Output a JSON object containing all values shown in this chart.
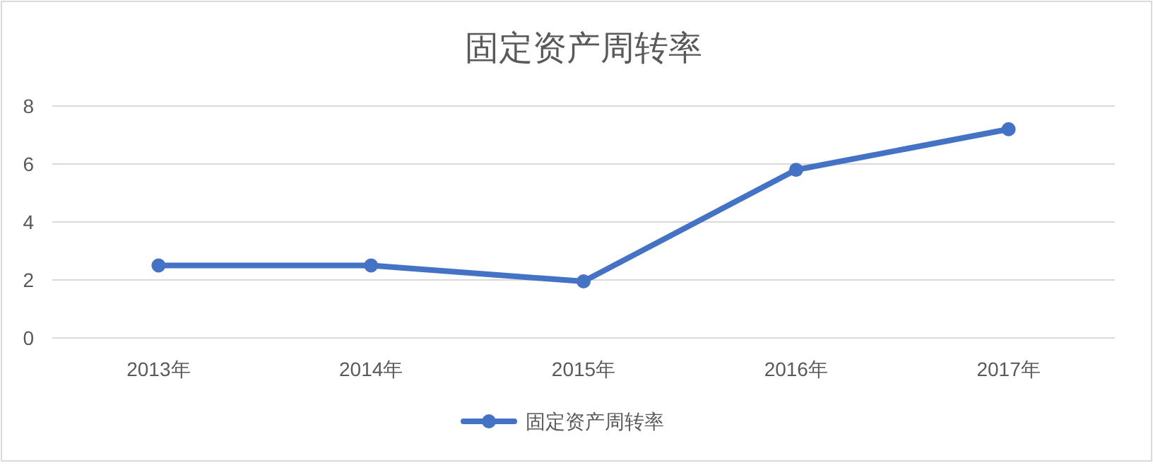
{
  "chart_data": {
    "type": "line",
    "title": "固定资产周转率",
    "categories": [
      "2013年",
      "2014年",
      "2015年",
      "2016年",
      "2017年"
    ],
    "series": [
      {
        "name": "固定资产周转率",
        "color": "#4472c4",
        "values": [
          2.5,
          2.5,
          1.95,
          5.8,
          7.2
        ]
      }
    ],
    "ylim": [
      0,
      8
    ],
    "yticks": [
      0,
      2,
      4,
      6,
      8
    ],
    "grid": "y",
    "legend": "bottom",
    "marker": "circle",
    "line_style": "solid"
  }
}
